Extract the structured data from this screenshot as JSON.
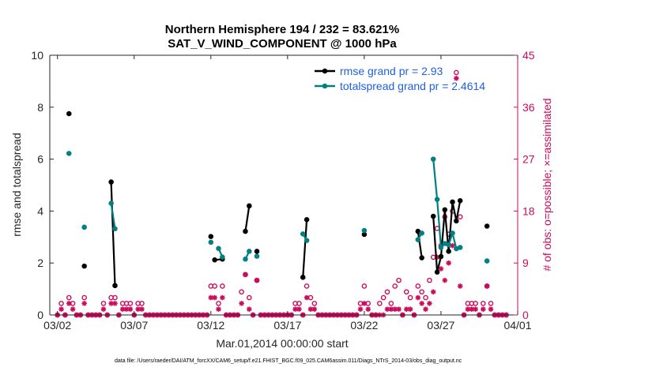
{
  "chart_data": {
    "type": "line",
    "title_line1": "Northern Hemisphere 194 / 232 = 83.621%",
    "title_line2": "SAT_V_WIND_COMPONENT @ 1000 hPa",
    "xlabel": "Mar.01,2014 00:00:00 start",
    "ylabel_left": "rmse and totalspread",
    "ylabel_right": "# of obs: o=possible; ×=assimilated",
    "footnote": "data file: /Users/raeder/DAI/ATM_forcXX/CAM6_setup/f.e21.FHIST_BGC.f09_025.CAM6assim.011/Diags_NTrS_2014-03/obs_diag_output.nc",
    "xlim": [
      1.5,
      32
    ],
    "ylim_left": [
      0,
      10
    ],
    "ylim_right": [
      0,
      45
    ],
    "x_ticks": [
      {
        "x": 2,
        "label": "03/02"
      },
      {
        "x": 7,
        "label": "03/07"
      },
      {
        "x": 12,
        "label": "03/12"
      },
      {
        "x": 17,
        "label": "03/17"
      },
      {
        "x": 22,
        "label": "03/22"
      },
      {
        "x": 27,
        "label": "03/27"
      },
      {
        "x": 32,
        "label": "04/01"
      }
    ],
    "y_ticks_left": [
      "0",
      "2",
      "4",
      "6",
      "8",
      "10"
    ],
    "y_ticks_right": [
      "0",
      "9",
      "18",
      "27",
      "36",
      "45"
    ],
    "series": [
      {
        "name": "rmse",
        "legend": "rmse grand pr = 2.93",
        "color": "#000000",
        "points": [
          [
            2.75,
            7.75
          ],
          [
            3.75,
            1.88
          ],
          [
            5.5,
            5.12
          ],
          [
            5.75,
            1.13
          ],
          [
            12.0,
            3.02
          ],
          [
            12.25,
            2.12
          ],
          [
            12.75,
            2.15
          ],
          [
            14.25,
            3.22
          ],
          [
            14.5,
            4.2
          ],
          [
            15.0,
            2.45
          ],
          [
            18.0,
            1.45
          ],
          [
            18.25,
            3.67
          ],
          [
            22.0,
            3.1
          ],
          [
            25.5,
            3.22
          ],
          [
            25.75,
            2.2
          ],
          [
            26.5,
            3.8
          ],
          [
            26.75,
            1.65
          ],
          [
            27.0,
            2.25
          ],
          [
            27.25,
            4.05
          ],
          [
            27.5,
            2.45
          ],
          [
            27.75,
            4.35
          ],
          [
            28.0,
            3.62
          ],
          [
            28.25,
            4.4
          ],
          [
            30.0,
            3.42
          ]
        ],
        "segments": [
          [
            0
          ],
          [
            1
          ],
          [
            2,
            3
          ],
          [
            4
          ],
          [
            5,
            6
          ],
          [
            7,
            8
          ],
          [
            9
          ],
          [
            10,
            11
          ],
          [
            12
          ],
          [
            13,
            14
          ],
          [
            15,
            16,
            17,
            18,
            19,
            20,
            21,
            22
          ],
          [
            23
          ]
        ]
      },
      {
        "name": "totalspread",
        "legend": "totalspread grand pr = 2.4614",
        "color": "#008080",
        "points": [
          [
            2.75,
            6.22
          ],
          [
            3.75,
            3.38
          ],
          [
            5.5,
            4.3
          ],
          [
            5.75,
            3.32
          ],
          [
            12.0,
            2.8
          ],
          [
            12.5,
            2.56
          ],
          [
            12.75,
            2.23
          ],
          [
            14.25,
            2.15
          ],
          [
            14.5,
            2.45
          ],
          [
            15.0,
            2.26
          ],
          [
            18.0,
            3.12
          ],
          [
            18.25,
            2.87
          ],
          [
            22.0,
            3.25
          ],
          [
            25.5,
            2.9
          ],
          [
            25.75,
            3.15
          ],
          [
            26.5,
            6.0
          ],
          [
            26.75,
            4.45
          ],
          [
            27.0,
            2.6
          ],
          [
            27.25,
            2.75
          ],
          [
            27.5,
            2.7
          ],
          [
            27.75,
            3.15
          ],
          [
            28.0,
            2.55
          ],
          [
            28.25,
            2.6
          ],
          [
            30.0,
            2.08
          ]
        ],
        "segments": [
          [
            0
          ],
          [
            1
          ],
          [
            2,
            3
          ],
          [
            4
          ],
          [
            5,
            6
          ],
          [
            7,
            8
          ],
          [
            9
          ],
          [
            10,
            11
          ],
          [
            12
          ],
          [
            13,
            14
          ],
          [
            15,
            16,
            17,
            18,
            19,
            20,
            21
          ],
          [
            22
          ],
          [
            23
          ]
        ]
      }
    ],
    "obs_possible": [
      [
        2.0,
        0
      ],
      [
        2.25,
        2
      ],
      [
        2.5,
        0
      ],
      [
        2.75,
        3
      ],
      [
        3.0,
        2
      ],
      [
        3.25,
        0
      ],
      [
        3.5,
        0
      ],
      [
        3.75,
        3
      ],
      [
        4.0,
        0
      ],
      [
        4.25,
        0
      ],
      [
        4.5,
        0
      ],
      [
        4.75,
        0
      ],
      [
        5.0,
        2
      ],
      [
        5.25,
        0
      ],
      [
        5.5,
        3
      ],
      [
        5.75,
        3
      ],
      [
        6.0,
        0
      ],
      [
        6.25,
        2
      ],
      [
        6.5,
        2
      ],
      [
        6.75,
        2
      ],
      [
        7.0,
        0
      ],
      [
        7.25,
        2
      ],
      [
        7.5,
        2
      ],
      [
        7.75,
        0
      ],
      [
        8.0,
        0
      ],
      [
        8.25,
        0
      ],
      [
        8.5,
        0
      ],
      [
        8.75,
        0
      ],
      [
        9.0,
        0
      ],
      [
        9.25,
        0
      ],
      [
        9.5,
        0
      ],
      [
        9.75,
        0
      ],
      [
        10.0,
        0
      ],
      [
        10.25,
        0
      ],
      [
        10.5,
        0
      ],
      [
        10.75,
        0
      ],
      [
        11.0,
        0
      ],
      [
        11.25,
        0
      ],
      [
        11.5,
        0
      ],
      [
        11.75,
        0
      ],
      [
        12.0,
        5
      ],
      [
        12.25,
        5
      ],
      [
        12.5,
        2
      ],
      [
        12.75,
        5
      ],
      [
        13.0,
        0
      ],
      [
        13.25,
        0
      ],
      [
        13.5,
        0
      ],
      [
        13.75,
        0
      ],
      [
        14.0,
        4
      ],
      [
        14.25,
        7
      ],
      [
        14.5,
        3
      ],
      [
        14.75,
        0
      ],
      [
        15.0,
        6
      ],
      [
        15.25,
        0
      ],
      [
        15.5,
        0
      ],
      [
        15.75,
        0
      ],
      [
        16.0,
        0
      ],
      [
        16.25,
        0
      ],
      [
        16.5,
        0
      ],
      [
        16.75,
        0
      ],
      [
        17.0,
        0
      ],
      [
        17.25,
        0
      ],
      [
        17.5,
        2
      ],
      [
        17.75,
        2
      ],
      [
        18.0,
        0
      ],
      [
        18.25,
        5
      ],
      [
        18.5,
        3
      ],
      [
        18.75,
        2
      ],
      [
        19.0,
        0
      ],
      [
        19.25,
        0
      ],
      [
        19.5,
        0
      ],
      [
        19.75,
        0
      ],
      [
        20.0,
        0
      ],
      [
        20.25,
        0
      ],
      [
        20.5,
        0
      ],
      [
        20.75,
        0
      ],
      [
        21.0,
        0
      ],
      [
        21.25,
        0
      ],
      [
        21.5,
        0
      ],
      [
        21.75,
        2
      ],
      [
        22.0,
        5
      ],
      [
        22.25,
        2
      ],
      [
        22.5,
        0
      ],
      [
        22.75,
        0
      ],
      [
        23.0,
        2
      ],
      [
        23.25,
        3
      ],
      [
        23.5,
        4
      ],
      [
        23.75,
        2
      ],
      [
        24.0,
        5
      ],
      [
        24.25,
        6
      ],
      [
        24.5,
        0
      ],
      [
        24.75,
        4
      ],
      [
        25.0,
        3
      ],
      [
        25.25,
        0
      ],
      [
        25.5,
        5
      ],
      [
        25.75,
        4
      ],
      [
        26.0,
        3
      ],
      [
        26.25,
        6
      ],
      [
        26.5,
        10
      ],
      [
        26.75,
        15
      ],
      [
        27.0,
        12
      ],
      [
        27.25,
        17
      ],
      [
        27.5,
        14
      ],
      [
        27.75,
        18
      ],
      [
        28.0,
        42
      ],
      [
        28.25,
        17
      ],
      [
        28.5,
        0
      ],
      [
        28.75,
        2
      ],
      [
        29.0,
        2
      ],
      [
        29.25,
        2
      ],
      [
        29.5,
        0
      ],
      [
        29.75,
        2
      ],
      [
        30.0,
        5
      ],
      [
        30.25,
        2
      ],
      [
        30.5,
        0
      ],
      [
        30.75,
        0
      ],
      [
        31.0,
        0
      ],
      [
        31.25,
        0
      ]
    ],
    "obs_assimilated": [
      [
        2.0,
        0
      ],
      [
        2.25,
        1
      ],
      [
        2.5,
        0
      ],
      [
        2.75,
        2
      ],
      [
        3.0,
        1
      ],
      [
        3.25,
        0
      ],
      [
        3.5,
        0
      ],
      [
        3.75,
        2
      ],
      [
        4.0,
        0
      ],
      [
        4.25,
        0
      ],
      [
        4.5,
        0
      ],
      [
        4.75,
        0
      ],
      [
        5.0,
        1
      ],
      [
        5.25,
        0
      ],
      [
        5.5,
        2
      ],
      [
        5.75,
        2
      ],
      [
        6.0,
        0
      ],
      [
        6.25,
        1
      ],
      [
        6.5,
        1
      ],
      [
        6.75,
        1
      ],
      [
        7.0,
        0
      ],
      [
        7.25,
        1
      ],
      [
        7.5,
        1
      ],
      [
        7.75,
        0
      ],
      [
        8.0,
        0
      ],
      [
        8.25,
        0
      ],
      [
        8.5,
        0
      ],
      [
        8.75,
        0
      ],
      [
        9.0,
        0
      ],
      [
        9.25,
        0
      ],
      [
        9.5,
        0
      ],
      [
        9.75,
        0
      ],
      [
        10.0,
        0
      ],
      [
        10.25,
        0
      ],
      [
        10.5,
        0
      ],
      [
        10.75,
        0
      ],
      [
        11.0,
        0
      ],
      [
        11.25,
        0
      ],
      [
        11.5,
        0
      ],
      [
        11.75,
        0
      ],
      [
        12.0,
        3
      ],
      [
        12.25,
        3
      ],
      [
        12.5,
        1
      ],
      [
        12.75,
        3
      ],
      [
        13.0,
        0
      ],
      [
        13.25,
        0
      ],
      [
        13.5,
        0
      ],
      [
        13.75,
        0
      ],
      [
        14.0,
        2
      ],
      [
        14.25,
        7
      ],
      [
        14.5,
        1
      ],
      [
        14.75,
        0
      ],
      [
        15.0,
        6
      ],
      [
        15.25,
        0
      ],
      [
        15.5,
        0
      ],
      [
        15.75,
        0
      ],
      [
        16.0,
        0
      ],
      [
        16.25,
        0
      ],
      [
        16.5,
        0
      ],
      [
        16.75,
        0
      ],
      [
        17.0,
        0
      ],
      [
        17.25,
        0
      ],
      [
        17.5,
        1
      ],
      [
        17.75,
        1
      ],
      [
        18.0,
        0
      ],
      [
        18.25,
        3
      ],
      [
        18.5,
        1
      ],
      [
        18.75,
        1
      ],
      [
        19.0,
        0
      ],
      [
        19.25,
        0
      ],
      [
        19.5,
        0
      ],
      [
        19.75,
        0
      ],
      [
        20.0,
        0
      ],
      [
        20.25,
        0
      ],
      [
        20.5,
        0
      ],
      [
        20.75,
        0
      ],
      [
        21.0,
        0
      ],
      [
        21.25,
        0
      ],
      [
        21.5,
        0
      ],
      [
        21.75,
        1
      ],
      [
        22.0,
        2
      ],
      [
        22.25,
        1
      ],
      [
        22.5,
        0
      ],
      [
        22.75,
        0
      ],
      [
        23.0,
        0
      ],
      [
        23.25,
        0
      ],
      [
        23.5,
        1
      ],
      [
        23.75,
        1
      ],
      [
        24.0,
        1
      ],
      [
        24.25,
        1
      ],
      [
        24.5,
        0
      ],
      [
        24.75,
        1
      ],
      [
        25.0,
        1
      ],
      [
        25.25,
        0
      ],
      [
        25.5,
        3
      ],
      [
        25.75,
        2
      ],
      [
        26.0,
        1
      ],
      [
        26.25,
        2
      ],
      [
        26.5,
        4
      ],
      [
        26.75,
        10
      ],
      [
        27.0,
        8
      ],
      [
        27.25,
        6
      ],
      [
        27.5,
        9
      ],
      [
        27.75,
        12
      ],
      [
        28.0,
        41
      ],
      [
        28.25,
        5
      ],
      [
        28.5,
        0
      ],
      [
        28.75,
        1
      ],
      [
        29.0,
        1
      ],
      [
        29.25,
        1
      ],
      [
        29.5,
        0
      ],
      [
        29.75,
        1
      ],
      [
        30.0,
        5
      ],
      [
        30.25,
        1
      ],
      [
        30.5,
        0
      ],
      [
        30.75,
        0
      ],
      [
        31.0,
        0
      ],
      [
        31.25,
        0
      ]
    ],
    "colors": {
      "rmse": "#000000",
      "totalspread": "#008080",
      "obs": "#cc0a5c",
      "legend_text": "#1f5fe0",
      "axis": "#262626",
      "right_axis": "#cc0a5c"
    }
  }
}
